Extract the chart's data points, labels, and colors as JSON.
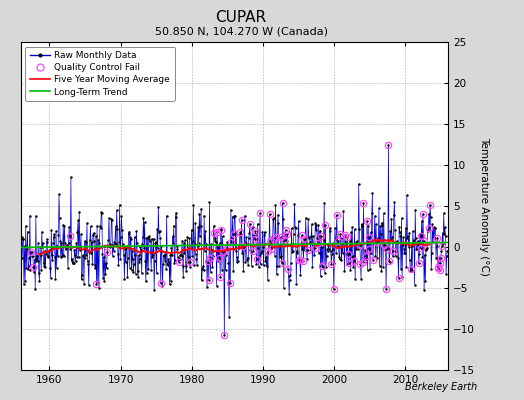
{
  "title": "CUPAR",
  "subtitle": "50.850 N, 104.270 W (Canada)",
  "ylabel": "Temperature Anomaly (°C)",
  "watermark": "Berkeley Earth",
  "x_start_year": 1956,
  "x_end_year": 2016,
  "ylim": [
    -15,
    25
  ],
  "yticks": [
    -15,
    -10,
    -5,
    0,
    5,
    10,
    15,
    20,
    25
  ],
  "xticks": [
    1960,
    1970,
    1980,
    1990,
    2000,
    2010
  ],
  "raw_color": "#0000cc",
  "ma_color": "#ff0000",
  "trend_color": "#00bb00",
  "qc_color": "#ff44ff",
  "bg_color": "#d8d8d8",
  "plot_bg_color": "#ffffff",
  "seed": 77
}
